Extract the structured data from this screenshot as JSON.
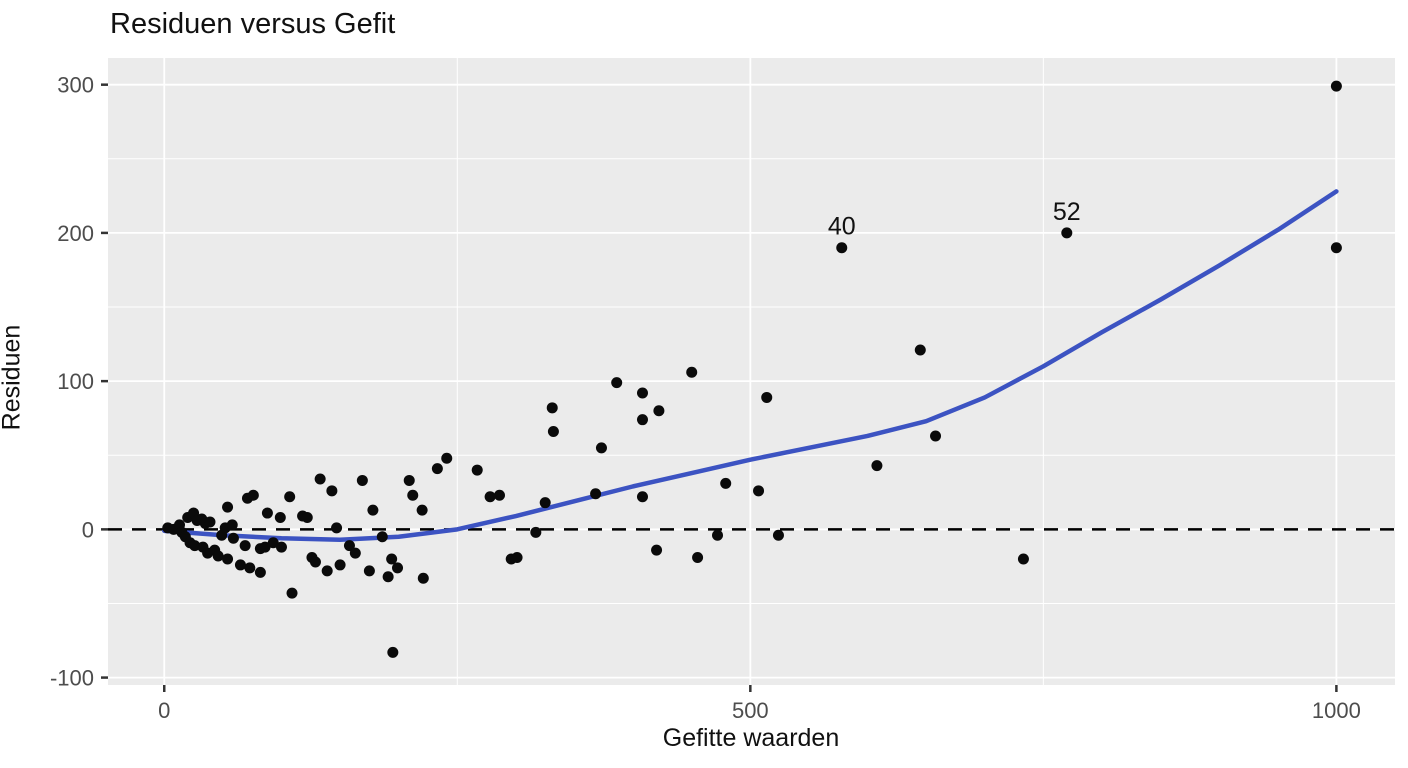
{
  "chart_data": {
    "type": "scatter",
    "title": "Residuen versus Gefit",
    "xlabel": "Gefitte waarden",
    "ylabel": "Residuen",
    "xlim": [
      -48,
      1050
    ],
    "ylim": [
      -105,
      318
    ],
    "x_major_ticks": [
      0,
      500,
      1000
    ],
    "x_minor_ticks": [
      250,
      750
    ],
    "y_major_ticks": [
      -100,
      0,
      100,
      200,
      300
    ],
    "y_minor_ticks": [
      -50,
      50,
      150,
      250
    ],
    "grid": true,
    "legend": false,
    "zero_line": {
      "y": 0,
      "style": "dashed"
    },
    "points": [
      [
        3,
        1
      ],
      [
        8,
        0
      ],
      [
        13,
        3
      ],
      [
        15,
        -2
      ],
      [
        18,
        -5
      ],
      [
        20,
        8
      ],
      [
        22,
        -9
      ],
      [
        25,
        11
      ],
      [
        26,
        -11
      ],
      [
        28,
        6
      ],
      [
        32,
        7
      ],
      [
        33,
        -12
      ],
      [
        35,
        4
      ],
      [
        37,
        -16
      ],
      [
        39,
        5
      ],
      [
        43,
        -14
      ],
      [
        46,
        -18
      ],
      [
        49,
        -4
      ],
      [
        52,
        1
      ],
      [
        54,
        15
      ],
      [
        54,
        -20
      ],
      [
        58,
        3
      ],
      [
        59,
        -6
      ],
      [
        65,
        -24
      ],
      [
        69,
        -11
      ],
      [
        71,
        21
      ],
      [
        73,
        -26
      ],
      [
        76,
        23
      ],
      [
        82,
        -13
      ],
      [
        82,
        -29
      ],
      [
        86,
        -12
      ],
      [
        88,
        11
      ],
      [
        93,
        -9
      ],
      [
        99,
        8
      ],
      [
        100,
        -12
      ],
      [
        107,
        22
      ],
      [
        109,
        -43
      ],
      [
        118,
        9
      ],
      [
        122,
        8
      ],
      [
        126,
        -19
      ],
      [
        129,
        -22
      ],
      [
        133,
        34
      ],
      [
        139,
        -28
      ],
      [
        143,
        26
      ],
      [
        147,
        1
      ],
      [
        150,
        -24
      ],
      [
        158,
        -11
      ],
      [
        163,
        -16
      ],
      [
        169,
        33
      ],
      [
        175,
        -28
      ],
      [
        178,
        13
      ],
      [
        186,
        -5
      ],
      [
        191,
        -32
      ],
      [
        194,
        -20
      ],
      [
        195,
        -83
      ],
      [
        199,
        -26
      ],
      [
        209,
        33
      ],
      [
        212,
        23
      ],
      [
        220,
        13
      ],
      [
        221,
        -33
      ],
      [
        233,
        41
      ],
      [
        241,
        48
      ],
      [
        267,
        40
      ],
      [
        278,
        22
      ],
      [
        286,
        23
      ],
      [
        296,
        -20
      ],
      [
        301,
        -19
      ],
      [
        317,
        -2
      ],
      [
        325,
        18
      ],
      [
        331,
        82
      ],
      [
        332,
        66
      ],
      [
        368,
        24
      ],
      [
        373,
        55
      ],
      [
        386,
        99
      ],
      [
        408,
        92
      ],
      [
        408,
        74
      ],
      [
        408,
        22
      ],
      [
        420,
        -14
      ],
      [
        422,
        80
      ],
      [
        450,
        106
      ],
      [
        455,
        -19
      ],
      [
        472,
        -4
      ],
      [
        479,
        31
      ],
      [
        507,
        26
      ],
      [
        514,
        89
      ],
      [
        524,
        -4
      ],
      [
        578,
        190
      ],
      [
        608,
        43
      ],
      [
        645,
        121
      ],
      [
        658,
        63
      ],
      [
        733,
        -20
      ],
      [
        770,
        200
      ],
      [
        1000,
        299
      ],
      [
        1000,
        190
      ]
    ],
    "labeled_points": [
      {
        "label": "40",
        "x": 578,
        "y": 190
      },
      {
        "label": "52",
        "x": 770,
        "y": 200
      }
    ],
    "smoother": [
      [
        0,
        -1
      ],
      [
        50,
        -4
      ],
      [
        100,
        -6
      ],
      [
        150,
        -7
      ],
      [
        200,
        -5
      ],
      [
        250,
        0
      ],
      [
        300,
        9
      ],
      [
        350,
        19
      ],
      [
        400,
        29
      ],
      [
        450,
        38
      ],
      [
        500,
        47
      ],
      [
        550,
        55
      ],
      [
        600,
        63
      ],
      [
        650,
        73
      ],
      [
        700,
        89
      ],
      [
        750,
        110
      ],
      [
        800,
        133
      ],
      [
        850,
        155
      ],
      [
        900,
        178
      ],
      [
        950,
        202
      ],
      [
        1000,
        228
      ]
    ],
    "colors": {
      "panel": "#ebebeb",
      "grid": "#ffffff",
      "point": "#0a0a0a",
      "smooth": "#3c53c2",
      "zero_line": "#000000",
      "tick_text": "#4d4d4d",
      "tick_mark": "#333333",
      "text": "#111111"
    }
  }
}
